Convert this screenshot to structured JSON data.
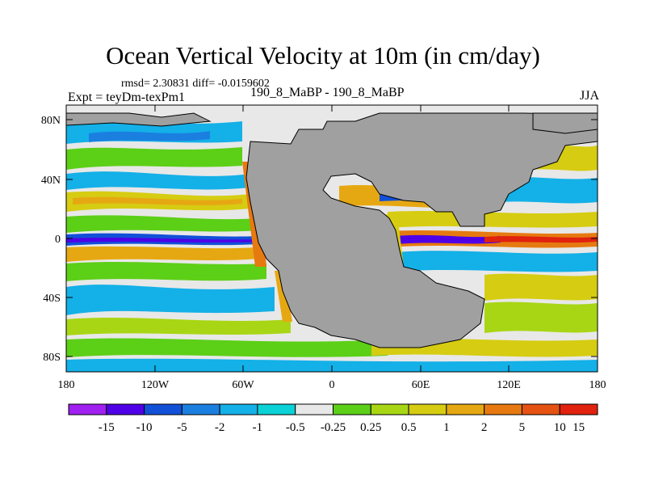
{
  "title": "Ocean Vertical Velocity at 10m (in cm/day)",
  "stats": "rmsd= 2.30831 diff= -0.0159602",
  "experiment": "Expt = teyDm-texPm1",
  "comparison": "190_8_MaBP - 190_8_MaBP",
  "season": "JJA",
  "lat_labels": [
    "80N",
    "40N",
    "0",
    "40S",
    "80S"
  ],
  "lon_labels": [
    "180",
    "120W",
    "60W",
    "0",
    "60E",
    "120E",
    "180"
  ],
  "colorbar": {
    "colors": [
      "#a020f0",
      "#4f00e6",
      "#1250d8",
      "#1b7fe0",
      "#14b0e8",
      "#0ad2d6",
      "#e8e8e8",
      "#5ccf17",
      "#a8d614",
      "#d6cc12",
      "#e6a812",
      "#e67a10",
      "#e65212",
      "#e0220e"
    ],
    "labels": [
      "-15",
      "-10",
      "-5",
      "-2",
      "-1",
      "-0.5",
      "-0.25",
      "0.25",
      "0.5",
      "1",
      "2",
      "5",
      "10",
      "15"
    ]
  },
  "land_color": "#a0a0a0"
}
